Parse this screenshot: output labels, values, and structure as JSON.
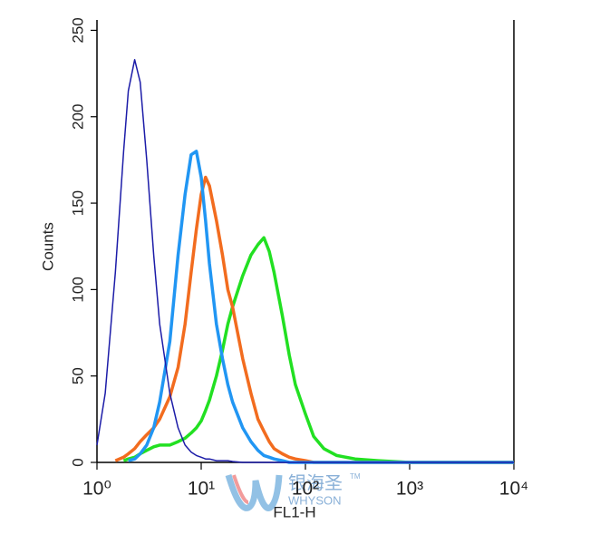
{
  "chart_data": {
    "type": "line",
    "x_label": "FL1-H",
    "y_label": "Counts",
    "log_x": true,
    "xlim": [
      1,
      10000
    ],
    "xticks": [
      {
        "value": 1,
        "label": "10⁰"
      },
      {
        "value": 10,
        "label": "10¹"
      },
      {
        "value": 100,
        "label": "10²"
      },
      {
        "value": 1000,
        "label": "10³"
      },
      {
        "value": 10000,
        "label": "10⁴"
      }
    ],
    "ylim": [
      0,
      256
    ],
    "yticks": [
      0,
      50,
      100,
      150,
      200,
      250
    ],
    "x": [
      1,
      1.2,
      1.5,
      1.8,
      2,
      2.3,
      2.6,
      3,
      3.5,
      4,
      5,
      6,
      7,
      8,
      9,
      10,
      11,
      12,
      14,
      16,
      18,
      20,
      25,
      30,
      35,
      40,
      45,
      50,
      60,
      70,
      80,
      100,
      120,
      150,
      200,
      300,
      500,
      1000,
      10000
    ],
    "series": [
      {
        "color": "#1c1ca8",
        "width": 1.5,
        "values": [
          10,
          40,
          110,
          180,
          215,
          233,
          220,
          175,
          120,
          80,
          40,
          20,
          10,
          6,
          4,
          3,
          2,
          2,
          1,
          1,
          1,
          0.5,
          0,
          0,
          0,
          0,
          0,
          0,
          0,
          0,
          0,
          0,
          0,
          0,
          0,
          0,
          0,
          0,
          0
        ]
      },
      {
        "color": "#2196f3",
        "width": 3.5,
        "values": [
          null,
          null,
          null,
          null,
          1,
          2,
          5,
          10,
          20,
          35,
          70,
          120,
          155,
          178,
          180,
          165,
          140,
          115,
          80,
          60,
          45,
          35,
          20,
          12,
          7,
          4,
          3,
          2,
          1,
          0,
          0,
          0,
          0,
          0,
          0,
          0,
          0,
          0,
          0
        ]
      },
      {
        "color": "#f26c1f",
        "width": 3.5,
        "values": [
          null,
          null,
          1,
          3,
          5,
          8,
          12,
          16,
          20,
          25,
          38,
          55,
          80,
          110,
          135,
          155,
          165,
          160,
          140,
          120,
          100,
          90,
          60,
          40,
          25,
          18,
          12,
          8,
          5,
          3,
          2,
          1,
          0,
          0,
          0,
          0,
          0,
          0,
          0
        ]
      },
      {
        "color": "#22e022",
        "width": 3.5,
        "values": [
          null,
          null,
          null,
          1,
          2,
          3,
          5,
          7,
          9,
          10,
          10,
          12,
          14,
          17,
          20,
          24,
          30,
          36,
          50,
          65,
          80,
          90,
          108,
          120,
          126,
          130,
          122,
          110,
          85,
          62,
          45,
          28,
          15,
          8,
          4,
          2,
          1,
          0,
          0
        ]
      }
    ]
  },
  "watermark": {
    "name": "银海圣",
    "brand": "WHYSON",
    "tm": "TM"
  }
}
